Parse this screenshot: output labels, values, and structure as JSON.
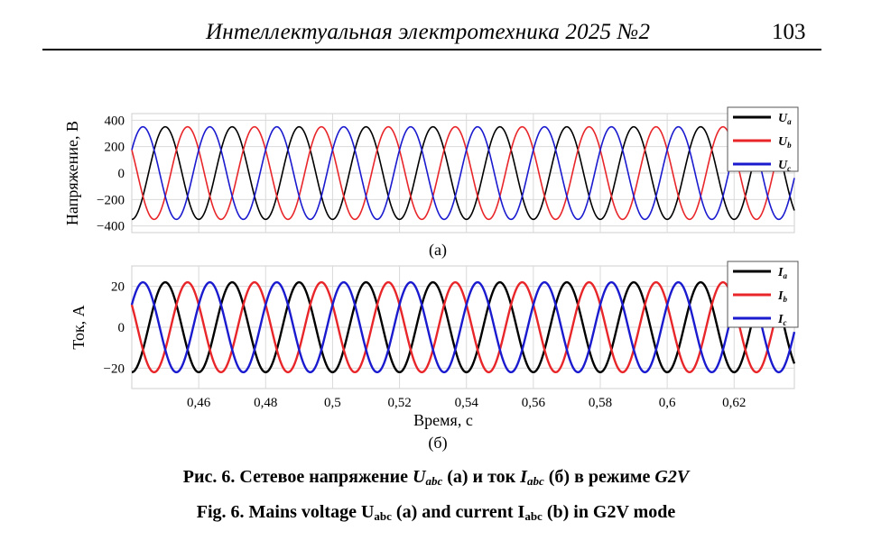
{
  "header": {
    "journal": "Интеллектуальная электротехника 2025 №2",
    "page_number": "103"
  },
  "caption": {
    "ru_lead": "Рис. 6. Сетевое напряжение ",
    "ru_sym1": "U",
    "ru_sub1": "abc",
    "ru_mid": " (а) и ток ",
    "ru_sym2": "I",
    "ru_sub2": "abc",
    "ru_tail": " (б) в режиме ",
    "ru_mode": "G2V",
    "en_lead": "Fig. 6. Mains voltage U",
    "en_sub1": "abc",
    "en_mid": " (a) and current I",
    "en_sub2": "abc",
    "en_tail": " (b) in G2V mode"
  },
  "colors": {
    "phase_a": "#000000",
    "phase_b": "#e8262a",
    "phase_c": "#1a1acf",
    "grid": "#d9d9d9"
  },
  "chart_data": [
    {
      "type": "line",
      "panel_label": "(а)",
      "ylabel": "Напряжение, В",
      "xlim": [
        0.44,
        0.638
      ],
      "ylim": [
        -450,
        450
      ],
      "yticks": [
        400,
        200,
        0,
        -200,
        -400
      ],
      "ytick_labels": [
        "400",
        "200",
        "0",
        "−200",
        "−400"
      ],
      "grid": true,
      "legend_position": "top-right",
      "frequency_hz": 50,
      "series": [
        {
          "name": "U",
          "sub": "a",
          "color_key": "phase_a",
          "amplitude": 350,
          "phase_deg": -90
        },
        {
          "name": "U",
          "sub": "b",
          "color_key": "phase_b",
          "amplitude": 350,
          "phase_deg": 150
        },
        {
          "name": "U",
          "sub": "c",
          "color_key": "phase_c",
          "amplitude": 350,
          "phase_deg": 30
        }
      ]
    },
    {
      "type": "line",
      "panel_label": "(б)",
      "ylabel": "Ток, А",
      "xlabel": "Время, с",
      "xlim": [
        0.44,
        0.638
      ],
      "ylim": [
        -30,
        30
      ],
      "yticks": [
        20,
        0,
        -20
      ],
      "ytick_labels": [
        "20",
        "0",
        "−20"
      ],
      "xticks": [
        0.46,
        0.48,
        0.5,
        0.52,
        0.54,
        0.56,
        0.58,
        0.6,
        0.62
      ],
      "xtick_labels": [
        "0,46",
        "0,48",
        "0,5",
        "0,52",
        "0,54",
        "0,56",
        "0,58",
        "0,6",
        "0,62"
      ],
      "grid": true,
      "legend_position": "top-right",
      "frequency_hz": 50,
      "series": [
        {
          "name": "I",
          "sub": "a",
          "color_key": "phase_a",
          "amplitude": 22,
          "phase_deg": -90
        },
        {
          "name": "I",
          "sub": "b",
          "color_key": "phase_b",
          "amplitude": 22,
          "phase_deg": 150
        },
        {
          "name": "I",
          "sub": "c",
          "color_key": "phase_c",
          "amplitude": 22,
          "phase_deg": 30
        }
      ]
    }
  ]
}
